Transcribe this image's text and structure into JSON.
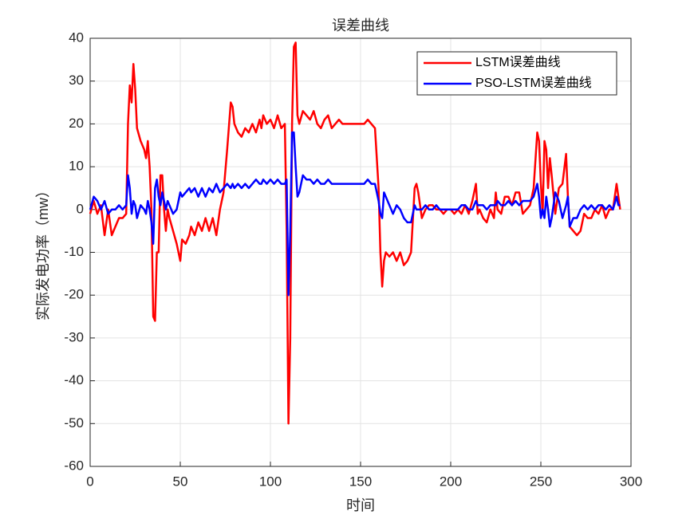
{
  "chart_data": {
    "type": "line",
    "title": "误差曲线",
    "x_label": "时间",
    "y_label": "实际发电功率（mw）",
    "x": [
      0,
      2,
      4,
      6,
      8,
      10,
      12,
      14,
      16,
      18,
      20,
      21,
      22,
      23,
      24,
      25,
      26,
      28,
      30,
      31,
      32,
      33,
      34,
      35,
      36,
      37,
      38,
      39,
      40,
      41,
      42,
      43,
      44,
      46,
      48,
      50,
      51,
      53,
      55,
      56,
      58,
      60,
      62,
      64,
      66,
      68,
      70,
      72,
      74,
      76,
      78,
      79,
      80,
      82,
      84,
      86,
      88,
      90,
      92,
      94,
      95,
      96,
      98,
      100,
      102,
      104,
      106,
      108,
      109,
      110,
      111,
      112,
      113,
      114,
      115,
      116,
      118,
      120,
      122,
      124,
      126,
      128,
      130,
      132,
      134,
      136,
      138,
      140,
      142,
      144,
      146,
      148,
      150,
      152,
      154,
      156,
      158,
      160,
      161,
      162,
      163,
      164,
      166,
      168,
      170,
      172,
      174,
      176,
      178,
      180,
      181,
      182,
      184,
      186,
      188,
      190,
      192,
      194,
      196,
      198,
      200,
      202,
      204,
      206,
      208,
      210,
      212,
      214,
      215,
      216,
      218,
      220,
      222,
      224,
      225,
      226,
      228,
      230,
      232,
      234,
      236,
      238,
      240,
      242,
      244,
      246,
      248,
      249,
      250,
      251,
      252,
      253,
      254,
      255,
      256,
      258,
      260,
      262,
      264,
      265,
      266,
      268,
      270,
      272,
      274,
      276,
      278,
      280,
      282,
      284,
      286,
      288,
      290,
      292,
      293,
      294
    ],
    "series": [
      {
        "name": "LSTM误差曲线",
        "color": "#ff0000",
        "values": [
          -1,
          2,
          -1,
          1,
          -6,
          0,
          -6,
          -4,
          -2,
          -2,
          -1,
          20,
          29,
          25,
          34,
          28,
          19,
          16,
          14,
          12,
          16,
          10,
          0,
          -25,
          -26,
          -10,
          -10,
          8,
          8,
          0,
          -5,
          0,
          -2,
          -5,
          -8,
          -12,
          -7,
          -8,
          -6,
          -4,
          -6,
          -3,
          -5,
          -2,
          -5,
          -2,
          -6,
          0,
          4,
          14,
          25,
          24,
          20,
          18,
          17,
          19,
          18,
          20,
          18,
          21,
          19,
          22,
          20,
          21,
          19,
          22,
          19,
          20,
          -5,
          -50,
          -30,
          20,
          38,
          39,
          22,
          20,
          23,
          22,
          21,
          23,
          20,
          19,
          21,
          22,
          19,
          20,
          21,
          20,
          20,
          20,
          20,
          20,
          20,
          20,
          21,
          20,
          19,
          5,
          -10,
          -18,
          -12,
          -10,
          -11,
          -10,
          -12,
          -10,
          -13,
          -12,
          -10,
          5,
          6,
          4,
          -2,
          0,
          1,
          1,
          0,
          0,
          -1,
          0,
          0,
          -1,
          0,
          -1,
          1,
          -1,
          2,
          6,
          -1,
          0,
          -2,
          -3,
          0,
          -2,
          4,
          0,
          -1,
          3,
          3,
          1,
          4,
          4,
          -1,
          0,
          1,
          5,
          18,
          16,
          6,
          -1,
          16,
          14,
          5,
          12,
          8,
          -1,
          5,
          6,
          13,
          3,
          -4,
          -5,
          -6,
          -5,
          -1,
          -2,
          -2,
          0,
          -1,
          1,
          -2,
          0,
          0,
          6,
          3,
          0
        ]
      },
      {
        "name": "PSO-LSTM误差曲线",
        "color": "#0000ff",
        "values": [
          0,
          3,
          2,
          0,
          2,
          -1,
          0,
          0,
          1,
          0,
          1,
          8,
          5,
          -1,
          2,
          1,
          -2,
          1,
          0,
          -1,
          2,
          0,
          -3,
          -8,
          5,
          7,
          3,
          1,
          4,
          2,
          0,
          2,
          1,
          -1,
          0,
          4,
          3,
          4,
          5,
          4,
          5,
          3,
          5,
          3,
          5,
          4,
          6,
          4,
          5,
          6,
          5,
          6,
          5,
          6,
          5,
          6,
          5,
          6,
          7,
          6,
          6,
          7,
          6,
          7,
          6,
          7,
          6,
          6,
          7,
          -20,
          -5,
          18,
          18,
          10,
          3,
          4,
          8,
          7,
          7,
          6,
          7,
          6,
          6,
          7,
          6,
          6,
          6,
          6,
          6,
          6,
          6,
          6,
          6,
          6,
          7,
          6,
          6,
          2,
          -1,
          -2,
          4,
          3,
          1,
          -1,
          1,
          0,
          -2,
          -3,
          -3,
          1,
          0,
          0,
          0,
          1,
          0,
          0,
          1,
          0,
          0,
          0,
          0,
          0,
          0,
          1,
          1,
          0,
          0,
          2,
          1,
          1,
          1,
          0,
          1,
          1,
          1,
          2,
          1,
          1,
          2,
          1,
          2,
          1,
          2,
          2,
          2,
          3,
          6,
          3,
          -2,
          0,
          -2,
          3,
          0,
          -4,
          -2,
          4,
          2,
          -2,
          1,
          3,
          -4,
          -2,
          -2,
          0,
          1,
          0,
          1,
          0,
          1,
          1,
          0,
          1,
          0,
          3,
          1,
          1
        ]
      }
    ],
    "xlim": [
      0,
      300
    ],
    "xticks": [
      0,
      50,
      100,
      150,
      200,
      250,
      300
    ],
    "ylim": [
      -60,
      40
    ],
    "yticks": [
      -60,
      -50,
      -40,
      -30,
      -20,
      -10,
      0,
      10,
      20,
      30,
      40
    ],
    "grid": true,
    "legend": "northeast"
  }
}
